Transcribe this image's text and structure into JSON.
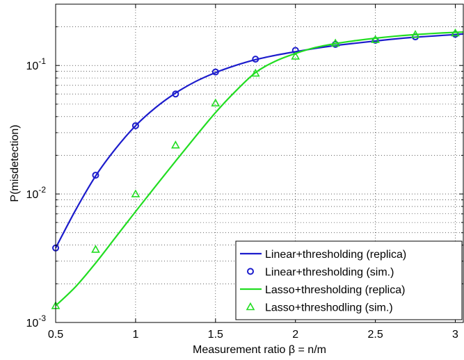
{
  "chart_data": {
    "type": "line",
    "xlabel": "Measurement ratio β = n/m",
    "ylabel": "P(misdetection)",
    "xlim": [
      0.5,
      3.05
    ],
    "ylim": [
      0.001,
      0.3
    ],
    "yscale": "log",
    "grid": true,
    "legend_position": "bottom-right",
    "x_ticks": [
      {
        "value": 0.5,
        "label": "0.5"
      },
      {
        "value": 1,
        "label": "1"
      },
      {
        "value": 1.5,
        "label": "1.5"
      },
      {
        "value": 2,
        "label": "2"
      },
      {
        "value": 2.5,
        "label": "2.5"
      },
      {
        "value": 3,
        "label": "3"
      }
    ],
    "y_ticks": [
      {
        "value": 0.001,
        "base": "10",
        "exp": "-3"
      },
      {
        "value": 0.01,
        "base": "10",
        "exp": "-2"
      },
      {
        "value": 0.1,
        "base": "10",
        "exp": "-1"
      }
    ],
    "series": [
      {
        "name": "Linear+thresholding (replica)",
        "kind": "line",
        "color": "#1c1ccc",
        "x": [
          0.5,
          0.625,
          0.75,
          0.875,
          1.0,
          1.125,
          1.25,
          1.375,
          1.5,
          1.625,
          1.75,
          1.875,
          2.0,
          2.125,
          2.25,
          2.375,
          2.5,
          2.625,
          2.75,
          2.875,
          3.0,
          3.05
        ],
        "y": [
          0.0038,
          0.0075,
          0.0138,
          0.0225,
          0.034,
          0.047,
          0.061,
          0.075,
          0.088,
          0.1,
          0.111,
          0.12,
          0.128,
          0.136,
          0.143,
          0.149,
          0.155,
          0.161,
          0.166,
          0.17,
          0.174,
          0.176
        ]
      },
      {
        "name": "Linear+thresholding (sim.)",
        "kind": "marker",
        "marker": "circle",
        "color": "#1c1ccc",
        "x": [
          0.5,
          0.75,
          1.0,
          1.25,
          1.5,
          1.75,
          2.0,
          2.25,
          2.5,
          2.75,
          3.0
        ],
        "y": [
          0.0038,
          0.014,
          0.034,
          0.06,
          0.089,
          0.112,
          0.131,
          0.146,
          0.157,
          0.167,
          0.175
        ]
      },
      {
        "name": "Lasso+thresholding (replica)",
        "kind": "line",
        "color": "#22dd22",
        "x": [
          0.5,
          0.625,
          0.75,
          0.875,
          1.0,
          1.125,
          1.25,
          1.375,
          1.5,
          1.625,
          1.75,
          1.875,
          2.0,
          2.125,
          2.25,
          2.375,
          2.5,
          2.625,
          2.75,
          2.875,
          3.0,
          3.05
        ],
        "y": [
          0.00135,
          0.0019,
          0.0029,
          0.0046,
          0.0073,
          0.0115,
          0.018,
          0.028,
          0.043,
          0.063,
          0.088,
          0.108,
          0.124,
          0.138,
          0.148,
          0.156,
          0.163,
          0.169,
          0.174,
          0.178,
          0.181,
          0.182
        ]
      },
      {
        "name": "Lasso+threshodling (sim.)",
        "kind": "marker",
        "marker": "triangle",
        "color": "#22dd22",
        "x": [
          0.5,
          0.75,
          1.0,
          1.25,
          1.5,
          1.75,
          2.0,
          2.25,
          2.5,
          2.75,
          3.0
        ],
        "y": [
          0.00135,
          0.0037,
          0.01,
          0.024,
          0.051,
          0.087,
          0.118,
          0.149,
          0.159,
          0.174,
          0.179
        ]
      }
    ]
  }
}
